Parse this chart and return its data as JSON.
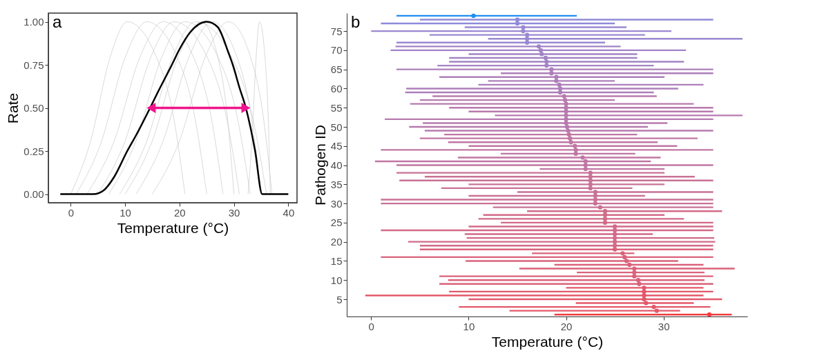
{
  "chart_data": [
    {
      "type": "line",
      "annotations": [
        "a"
      ],
      "xlabel": "Temperature (°C)",
      "ylabel": "Rate",
      "xlim": [
        -4.1,
        41.6
      ],
      "ylim": [
        -0.05,
        1.05
      ],
      "xticks": [
        0,
        10,
        20,
        30,
        40
      ],
      "yticks": [
        {
          "value": 0,
          "label": "0.00"
        },
        {
          "value": 0.25,
          "label": "0.25"
        },
        {
          "value": 0.5,
          "label": "0.50"
        },
        {
          "value": 0.75,
          "label": "0.75"
        },
        {
          "value": 1,
          "label": "1.00"
        }
      ],
      "series": [
        {
          "color": "#c4c4c4",
          "x": [
            0,
            3.6,
            7.3,
            10.4,
            15.7,
            18.9,
            21
          ],
          "values": [
            0,
            0.3,
            0.8,
            1,
            0.8,
            0.45,
            0
          ]
        },
        {
          "color": "#c4c4c4",
          "x": [
            1,
            5.6,
            10.1,
            14,
            19.5,
            22.8,
            25
          ],
          "values": [
            0,
            0.3,
            0.8,
            1,
            0.8,
            0.45,
            0
          ]
        },
        {
          "color": "#c4c4c4",
          "x": [
            3,
            7.9,
            12.8,
            17,
            22.5,
            25.8,
            28
          ],
          "values": [
            0,
            0.3,
            0.8,
            1,
            0.8,
            0.45,
            0
          ]
        },
        {
          "color": "#c4c4c4",
          "x": [
            5,
            9.9,
            14.8,
            19,
            25,
            28.6,
            31
          ],
          "values": [
            0,
            0.3,
            0.8,
            1,
            0.8,
            0.45,
            0
          ]
        },
        {
          "color": "#c4c4c4",
          "x": [
            7,
            11.9,
            16.8,
            21,
            27,
            30.6,
            33
          ],
          "values": [
            0,
            0.3,
            0.8,
            1,
            0.8,
            0.45,
            0
          ]
        },
        {
          "color": "#c4c4c4",
          "x": [
            9,
            13.9,
            18.8,
            23,
            29.5,
            33.4,
            36
          ],
          "values": [
            0,
            0.3,
            0.8,
            1,
            0.8,
            0.45,
            0
          ]
        },
        {
          "color": "#c4c4c4",
          "x": [
            12,
            16.9,
            21.8,
            26,
            30.5,
            33.2,
            35
          ],
          "values": [
            0,
            0.3,
            0.8,
            1,
            0.8,
            0.45,
            0
          ]
        },
        {
          "color": "#c4c4c4",
          "x": [
            15,
            19.9,
            24.8,
            29,
            33,
            35.4,
            37
          ],
          "values": [
            0,
            0.3,
            0.8,
            1,
            0.8,
            0.45,
            0
          ]
        },
        {
          "color": "#c4c4c4",
          "x": [
            10,
            14.9,
            19.8,
            24,
            27,
            28.8,
            30
          ],
          "values": [
            0,
            0.3,
            0.8,
            1,
            0.8,
            0.45,
            0
          ]
        },
        {
          "color": "#c4c4c4",
          "x": [
            32.6,
            33.3,
            34.1,
            34.7,
            35.7,
            36.3,
            36.7
          ],
          "values": [
            0,
            0.3,
            0.8,
            1,
            0.8,
            0.45,
            0
          ]
        },
        {
          "color": "#000000",
          "x": [
            -1.9,
            4.2,
            6,
            8,
            10.4,
            12,
            14.6,
            16,
            18.6,
            20,
            22,
            25,
            27,
            29,
            29.8,
            31,
            32.2,
            33.9,
            35.2,
            40
          ],
          "values": [
            0,
            0,
            0.02,
            0.1,
            0.25,
            0.34,
            0.5,
            0.59,
            0.75,
            0.84,
            0.94,
            1,
            0.97,
            0.82,
            0.75,
            0.62,
            0.5,
            0.25,
            0,
            0
          ]
        },
        {
          "color": "#f0148c",
          "marker": "triangle",
          "x": [
            14.8,
            32.2
          ],
          "values": [
            0.5,
            0.5
          ]
        }
      ]
    },
    {
      "type": "scatter",
      "marker": "circle",
      "annotations": [
        "b"
      ],
      "xlabel": "Temperature (°C)",
      "ylabel": "Pathogen ID",
      "xlim": [
        -2.5,
        38.6
      ],
      "ylim": [
        0.5,
        79.7
      ],
      "xticks": [
        0,
        10,
        20,
        30
      ],
      "yticks": [
        5,
        10,
        15,
        20,
        25,
        30,
        35,
        40,
        45,
        50,
        55,
        60,
        65,
        70,
        75
      ],
      "x": [
        10.5,
        15.0,
        15.0,
        15.6,
        15.6,
        16.0,
        16.0,
        16.0,
        17.2,
        17.4,
        17.5,
        17.9,
        18.0,
        18.0,
        18.5,
        18.5,
        19.0,
        19.0,
        19.3,
        19.4,
        19.4,
        19.8,
        19.9,
        20.0,
        20.0,
        20.0,
        20.0,
        20.0,
        20.0,
        20.1,
        20.2,
        20.3,
        20.4,
        20.5,
        20.9,
        21.0,
        21.0,
        21.7,
        22.0,
        22.0,
        22.0,
        22.5,
        22.5,
        22.5,
        22.5,
        22.5,
        23.0,
        23.0,
        23.0,
        23.0,
        23.5,
        24.0,
        24.0,
        24.0,
        24.0,
        25.0,
        25.0,
        25.0,
        25.0,
        25.0,
        25.0,
        25.0,
        25.8,
        26.0,
        26.2,
        26.5,
        27.0,
        27.0,
        27.0,
        27.4,
        27.5,
        28.0,
        28.0,
        28.0,
        28.0,
        28.2,
        29.0,
        29.3,
        34.7
      ],
      "values": [
        79,
        78,
        77,
        76,
        75,
        74,
        73,
        72,
        71,
        70,
        69,
        68,
        67,
        66,
        65,
        64,
        63,
        62,
        61,
        60,
        59,
        58,
        57,
        56,
        55,
        54,
        53,
        52,
        51,
        50,
        49,
        48,
        47,
        46,
        45,
        44,
        43,
        42,
        41,
        40,
        39,
        38,
        37,
        36,
        35,
        34,
        33,
        32,
        31,
        30,
        29,
        28,
        27,
        26,
        25,
        24,
        23,
        22,
        21,
        20,
        19,
        18,
        17,
        16,
        15,
        14,
        13,
        12,
        11,
        10,
        9,
        8,
        7,
        6,
        5,
        4,
        3,
        2,
        1
      ],
      "xerrors": [
        [
          2.6,
          21.1
        ],
        [
          5.0,
          35.1
        ],
        [
          1.0,
          25.0
        ],
        [
          9.6,
          26.2
        ],
        [
          0.0,
          30.8
        ],
        [
          6.0,
          28.1
        ],
        [
          12.0,
          38.1
        ],
        [
          2.6,
          24.0
        ],
        [
          2.5,
          25.6
        ],
        [
          2.0,
          32.3
        ],
        [
          10.0,
          27.3
        ],
        [
          8.0,
          27.3
        ],
        [
          8.0,
          32.1
        ],
        [
          6.8,
          29.0
        ],
        [
          2.6,
          35.1
        ],
        [
          13.3,
          35.1
        ],
        [
          7.0,
          30.1
        ],
        [
          12.0,
          25.0
        ],
        [
          11.0,
          34.1
        ],
        [
          3.6,
          31.5
        ],
        [
          3.5,
          29.0
        ],
        [
          6.3,
          29.3
        ],
        [
          5.0,
          25.0
        ],
        [
          4.0,
          33.1
        ],
        [
          8.0,
          35.1
        ],
        [
          10.0,
          35.1
        ],
        [
          12.7,
          38.1
        ],
        [
          1.4,
          35.1
        ],
        [
          5.3,
          30.4
        ],
        [
          3.9,
          28.4
        ],
        [
          5.5,
          35.1
        ],
        [
          7.5,
          27.3
        ],
        [
          5.0,
          33.5
        ],
        [
          7.9,
          29.4
        ],
        [
          10.0,
          31.4
        ],
        [
          1.0,
          35.1
        ],
        [
          13.3,
          27.1
        ],
        [
          8.9,
          29.7
        ],
        [
          0.4,
          28.7
        ],
        [
          2.6,
          35.1
        ],
        [
          17.3,
          30.1
        ],
        [
          2.6,
          30.1
        ],
        [
          5.5,
          33.2
        ],
        [
          2.9,
          35.1
        ],
        [
          10.0,
          30.1
        ],
        [
          7.2,
          26.8
        ],
        [
          15.0,
          35.1
        ],
        [
          10.0,
          28.1
        ],
        [
          1.0,
          35.1
        ],
        [
          1.0,
          35.1
        ],
        [
          12.5,
          35.1
        ],
        [
          16.0,
          36.0
        ],
        [
          11.5,
          30.1
        ],
        [
          11.0,
          32.1
        ],
        [
          13.3,
          35.1
        ],
        [
          10.0,
          35.1
        ],
        [
          1.0,
          35.1
        ],
        [
          9.6,
          28.9
        ],
        [
          9.8,
          35.2
        ],
        [
          3.8,
          35.3
        ],
        [
          5.0,
          35.1
        ],
        [
          5.0,
          35.1
        ],
        [
          16.5,
          27.0
        ],
        [
          1.0,
          35.1
        ],
        [
          9.7,
          31.5
        ],
        [
          18.8,
          34.1
        ],
        [
          15.2,
          37.3
        ],
        [
          21.1,
          34.2
        ],
        [
          7.0,
          35.1
        ],
        [
          7.9,
          34.2
        ],
        [
          7.0,
          35.1
        ],
        [
          20.0,
          34.1
        ],
        [
          8.0,
          35.1
        ],
        [
          -0.6,
          34.1
        ],
        [
          10.0,
          36.0
        ],
        [
          21.0,
          33.1
        ],
        [
          9.0,
          34.8
        ],
        [
          14.2,
          31.7
        ],
        [
          18.8,
          37.0
        ]
      ],
      "colors": [
        "#1f8ef1",
        "#8f8ad9",
        "#8f8ad9",
        "#9a88d2",
        "#9a88d2",
        "#9a88d2",
        "#9a88d2",
        "#9a88d2",
        "#a283c6",
        "#a283c6",
        "#a283c6",
        "#a283c6",
        "#a283c6",
        "#a283c6",
        "#ad7fba",
        "#ad7fba",
        "#ad7fba",
        "#ad7fba",
        "#ad7fba",
        "#ad7fba",
        "#ad7fba",
        "#b77aae",
        "#b77aae",
        "#b77aae",
        "#b77aae",
        "#b77aae",
        "#b77aae",
        "#b77aae",
        "#b77aae",
        "#b77aae",
        "#b77aae",
        "#c076a3",
        "#c076a3",
        "#c076a3",
        "#c076a3",
        "#c076a3",
        "#c076a3",
        "#c076a3",
        "#c076a3",
        "#c076a3",
        "#c076a3",
        "#c97196",
        "#c97196",
        "#c97196",
        "#c97196",
        "#c97196",
        "#c97196",
        "#c97196",
        "#c97196",
        "#c97196",
        "#c97196",
        "#d26a88",
        "#d26a88",
        "#d26a88",
        "#d26a88",
        "#d26a88",
        "#d26a88",
        "#d26a88",
        "#d26a88",
        "#d26a88",
        "#d26a88",
        "#da627a",
        "#da627a",
        "#da627a",
        "#da627a",
        "#da627a",
        "#da627a",
        "#da627a",
        "#da627a",
        "#da627a",
        "#da627a",
        "#e3586a",
        "#e3586a",
        "#e3586a",
        "#e3586a",
        "#e3586a",
        "#e3586a",
        "#e3586a",
        "#f23b3f"
      ]
    }
  ]
}
